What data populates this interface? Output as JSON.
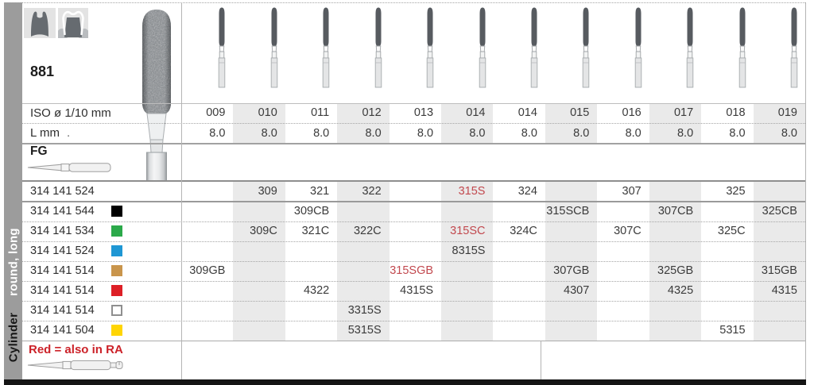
{
  "header": {
    "figure": "881",
    "iso_label": "ISO ø 1/10 mm",
    "l_label": "L mm",
    "l_dot": ".",
    "fg_label": "FG"
  },
  "sidebar": {
    "shape_label": "round, long",
    "category_label": "Cylinder"
  },
  "icons": [
    {
      "name": "tooth-silhouette-icon"
    },
    {
      "name": "crown-on-prep-icon"
    }
  ],
  "columns": {
    "iso_values": [
      "009",
      "010",
      "011",
      "012",
      "013",
      "014",
      "014",
      "015",
      "016",
      "017",
      "018",
      "019"
    ],
    "l_values": [
      "8.0",
      "8.0",
      "8.0",
      "8.0",
      "8.0",
      "8.0",
      "8.0",
      "8.0",
      "8.0",
      "8.0",
      "8.0",
      "8.0"
    ]
  },
  "rows": [
    {
      "code": "314 141 524",
      "chip": null,
      "cells": [
        "",
        "309",
        "321",
        "322",
        "",
        "315S",
        "324",
        "",
        "307",
        "",
        "325",
        ""
      ],
      "red": [
        5
      ]
    },
    {
      "code": "314 141 544",
      "chip": "#000000",
      "cells": [
        "",
        "",
        "309CB",
        "",
        "",
        "",
        "",
        "315SCB",
        "",
        "307CB",
        "",
        "325CB"
      ],
      "red": []
    },
    {
      "code": "314 141 534",
      "chip": "#2ba94a",
      "cells": [
        "",
        "309C",
        "321C",
        "322C",
        "",
        "315SC",
        "324C",
        "",
        "307C",
        "",
        "325C",
        ""
      ],
      "red": [
        5
      ]
    },
    {
      "code": "314 141 524",
      "chip": "#1f97d4",
      "cells": [
        "",
        "",
        "",
        "",
        "",
        "8315S",
        "",
        "",
        "",
        "",
        "",
        ""
      ],
      "red": []
    },
    {
      "code": "314 141 514",
      "chip": "#c9954c",
      "cells": [
        "309GB",
        "",
        "",
        "",
        "315SGB",
        "",
        "",
        "307GB",
        "",
        "325GB",
        "",
        "315GB"
      ],
      "red": [
        4
      ]
    },
    {
      "code": "314 141 514",
      "chip": "#dd1f26",
      "cells": [
        "",
        "",
        "4322",
        "",
        "4315S",
        "",
        "",
        "4307",
        "",
        "4325",
        "",
        "4315"
      ],
      "red": []
    },
    {
      "code": "314 141 514",
      "chip": "#ffffff",
      "cells": [
        "",
        "",
        "",
        "3315S",
        "",
        "",
        "",
        "",
        "",
        "",
        "",
        ""
      ],
      "red": []
    },
    {
      "code": "314 141 504",
      "chip": "#ffd504",
      "cells": [
        "",
        "",
        "",
        "5315S",
        "",
        "",
        "",
        "",
        "",
        "",
        "5315",
        ""
      ],
      "red": []
    }
  ],
  "footer": {
    "note": "Red = also in RA"
  },
  "colors": {
    "stripe": "#eaeaea",
    "red_value": "#c2494f",
    "note_red": "#cc2229",
    "sidebar": "#9c9c9c",
    "bottom_bar": "#151515"
  }
}
